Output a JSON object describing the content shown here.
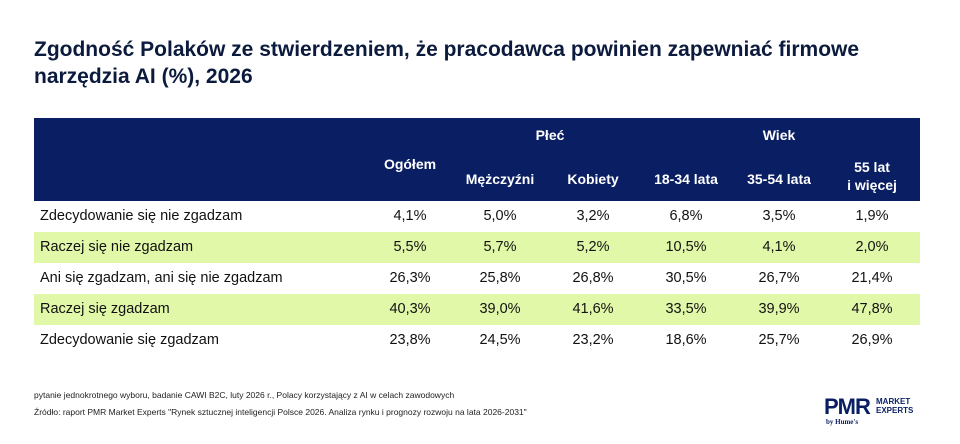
{
  "title": "Zgodność Polaków ze stwierdzeniem, że pracodawca powinien zapewniać firmowe narzędzia AI (%), 2026",
  "colors": {
    "header_bg": "#0a1f63",
    "highlight_row": "#e2f8a9"
  },
  "table": {
    "group_headers": [
      "Płeć",
      "Wiek"
    ],
    "columns": [
      "Ogółem",
      "Mężczyźni",
      "Kobiety",
      "18-34 lata",
      "35-54 lata",
      "55 lat",
      "i więcej"
    ],
    "rows": [
      {
        "label": "Zdecydowanie się nie zgadzam",
        "values": [
          "4,1%",
          "5,0%",
          "3,2%",
          "6,8%",
          "3,5%",
          "1,9%"
        ]
      },
      {
        "label": "Raczej się nie zgadzam",
        "values": [
          "5,5%",
          "5,7%",
          "5,2%",
          "10,5%",
          "4,1%",
          "2,0%"
        ]
      },
      {
        "label": "Ani się zgadzam, ani się nie zgadzam",
        "values": [
          "26,3%",
          "25,8%",
          "26,8%",
          "30,5%",
          "26,7%",
          "21,4%"
        ]
      },
      {
        "label": "Raczej się zgadzam",
        "values": [
          "40,3%",
          "39,0%",
          "41,6%",
          "33,5%",
          "39,9%",
          "47,8%"
        ]
      },
      {
        "label": "Zdecydowanie się zgadzam",
        "values": [
          "23,8%",
          "24,5%",
          "23,2%",
          "18,6%",
          "25,7%",
          "26,9%"
        ]
      }
    ]
  },
  "footnote": "pytanie jednokrotnego wyboru, badanie CAWI B2C, luty 2026 r., Polacy korzystający z AI w celach zawodowych",
  "source": "Źródło: raport PMR Market Experts \"Rynek sztucznej inteligencji Polsce 2026. Analiza rynku i prognozy rozwoju na lata 2026-2031\"",
  "logo": {
    "main": "PMR",
    "sub1": "MARKET",
    "sub2": "EXPERTS",
    "by": "by Hume's"
  }
}
